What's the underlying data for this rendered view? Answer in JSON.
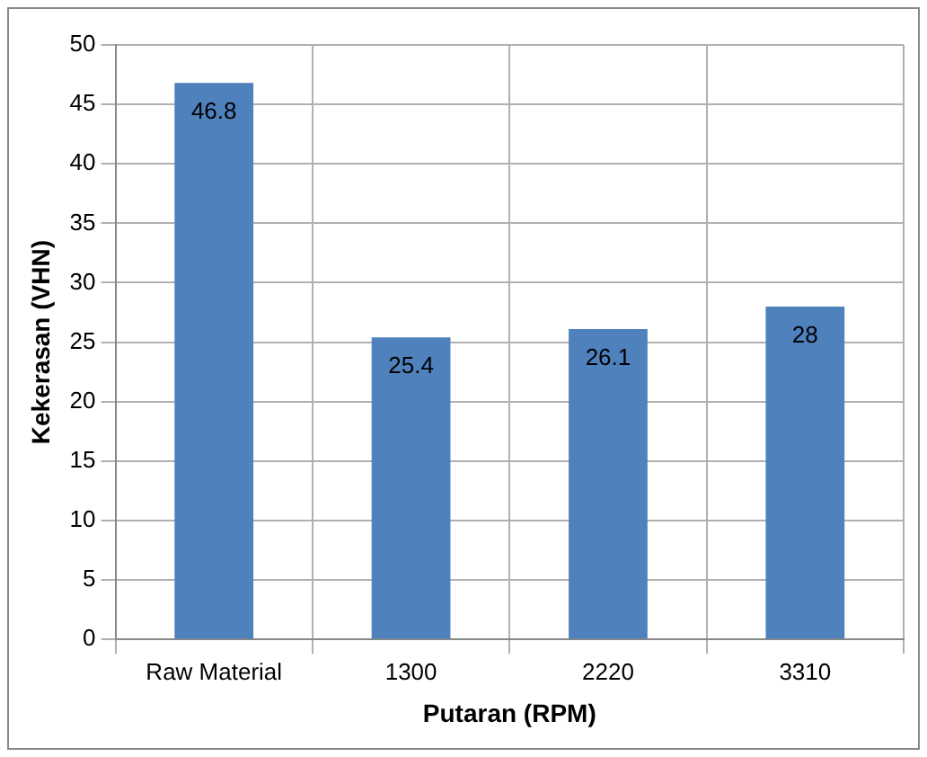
{
  "chart_data": {
    "type": "bar",
    "xlabel": "Putaran (RPM)",
    "ylabel": "Kekerasan (VHN)",
    "categories": [
      "Raw Material",
      "1300",
      "2220",
      "3310"
    ],
    "values": [
      46.8,
      25.4,
      26.1,
      28
    ],
    "color": "#4f81bd",
    "ylim": [
      0,
      50
    ],
    "yticks": [
      0,
      5,
      10,
      15,
      20,
      25,
      30,
      35,
      40,
      45,
      50
    ],
    "grid": true,
    "data_labels": true,
    "legend": false
  }
}
